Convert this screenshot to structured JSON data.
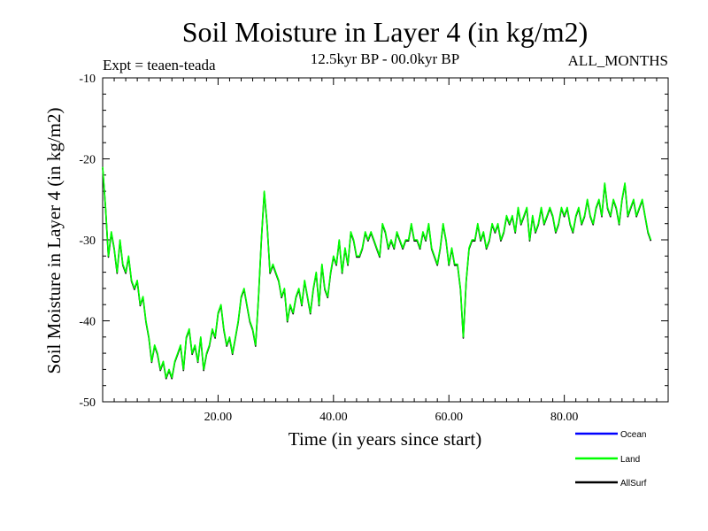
{
  "chart_data": {
    "type": "line",
    "title": "Soil Moisture in Layer 4 (in kg/m2)",
    "subtitle": "12.5kyr BP - 00.0kyr BP",
    "experiment": "Expt = teaen-teada",
    "period": "ALL_MONTHS",
    "xlabel": "Time (in years since start)",
    "ylabel": "Soil Moisture in Layer 4 (in kg/m2)",
    "xlim": [
      0,
      98
    ],
    "ylim": [
      -50,
      -10
    ],
    "x_ticks": [
      20,
      40,
      60,
      80
    ],
    "x_tick_labels": [
      "20.00",
      "40.00",
      "60.00",
      "80.00"
    ],
    "y_ticks": [
      -10,
      -20,
      -30,
      -40,
      -50
    ],
    "y_tick_labels": [
      "-10",
      "-20",
      "-30",
      "-40",
      "-50"
    ],
    "legend_position": "bottom-right",
    "series": [
      {
        "name": "Ocean",
        "legend_label": "Ocean",
        "color": "#0000ff",
        "values": []
      },
      {
        "name": "Land",
        "legend_label": "Land",
        "color": "#00ff00",
        "x_start": 0,
        "x_step": 0.5,
        "values": [
          -21,
          -26,
          -32,
          -29,
          -31,
          -34,
          -30,
          -33,
          -34,
          -32,
          -35,
          -36,
          -35,
          -38,
          -37,
          -40,
          -42,
          -45,
          -43,
          -44,
          -46,
          -45,
          -47,
          -46,
          -47,
          -45,
          -44,
          -43,
          -46,
          -42,
          -41,
          -44,
          -43,
          -45,
          -42,
          -46,
          -44,
          -43,
          -41,
          -42,
          -39,
          -38,
          -41,
          -43,
          -42,
          -44,
          -42,
          -40,
          -37,
          -36,
          -38,
          -40,
          -41,
          -43,
          -37,
          -30,
          -24,
          -28,
          -34,
          -33,
          -34,
          -35,
          -37,
          -36,
          -40,
          -38,
          -39,
          -37,
          -36,
          -38,
          -35,
          -37,
          -39,
          -36,
          -34,
          -38,
          -33,
          -36,
          -37,
          -34,
          -32,
          -33,
          -30,
          -34,
          -31,
          -33,
          -29,
          -30,
          -32,
          -32,
          -31,
          -29,
          -30,
          -29,
          -30,
          -31,
          -32,
          -28,
          -29,
          -31,
          -30,
          -31,
          -29,
          -30,
          -31,
          -30,
          -30,
          -28,
          -30,
          -30,
          -31,
          -29,
          -30,
          -28,
          -31,
          -32,
          -33,
          -31,
          -28,
          -30,
          -33,
          -31,
          -33,
          -33,
          -36,
          -42,
          -35,
          -31,
          -30,
          -30,
          -28,
          -30,
          -29,
          -31,
          -30,
          -28,
          -29,
          -28,
          -30,
          -29,
          -27,
          -28,
          -27,
          -29,
          -26,
          -28,
          -27,
          -26,
          -30,
          -27,
          -29,
          -28,
          -26,
          -28,
          -27,
          -26,
          -27,
          -29,
          -28,
          -26,
          -27,
          -26,
          -28,
          -29,
          -27,
          -26,
          -28,
          -27,
          -25,
          -27,
          -28,
          -26,
          -25,
          -27,
          -23,
          -26,
          -27,
          -25,
          -26,
          -28,
          -25,
          -23,
          -27,
          -26,
          -25,
          -27,
          -26,
          -25,
          -27,
          -29,
          -30
        ]
      },
      {
        "name": "AllSurf",
        "legend_label": "AllSurf",
        "color": "#000000",
        "values": []
      }
    ]
  }
}
